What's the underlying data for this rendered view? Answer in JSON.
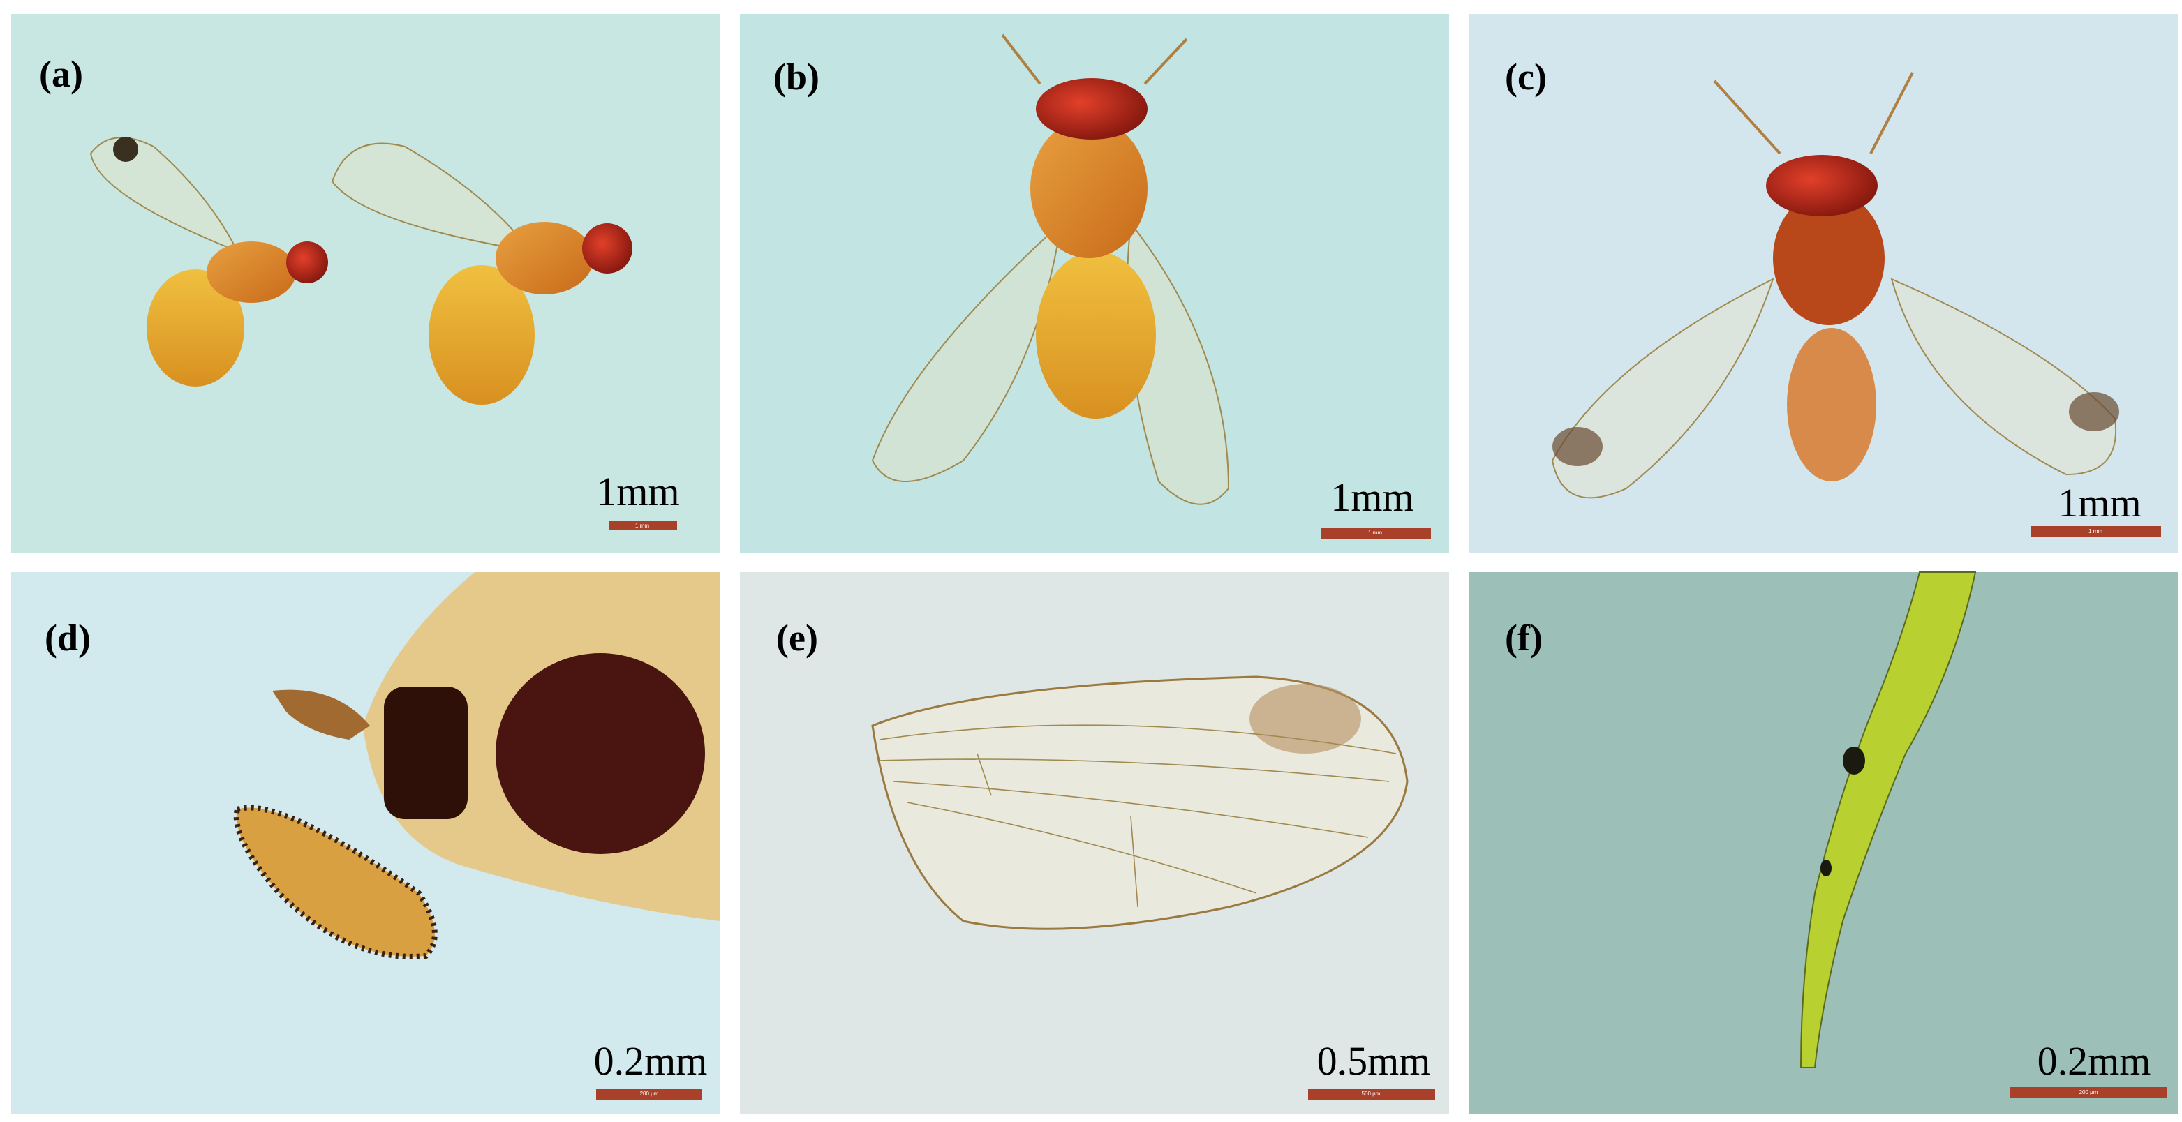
{
  "panels": [
    {
      "label": "(a)",
      "scale": "1mm",
      "bar_label": "1 mm"
    },
    {
      "label": "(b)",
      "scale": "1mm",
      "bar_label": "1 mm"
    },
    {
      "label": "(c)",
      "scale": "1mm",
      "bar_label": "1 mm"
    },
    {
      "label": "(d)",
      "scale": "0.2mm",
      "bar_label": "200 μm"
    },
    {
      "label": "(e)",
      "scale": "0.5mm",
      "bar_label": "500 μm"
    },
    {
      "label": "(f)",
      "scale": "0.2mm",
      "bar_label": "200 μm"
    }
  ]
}
